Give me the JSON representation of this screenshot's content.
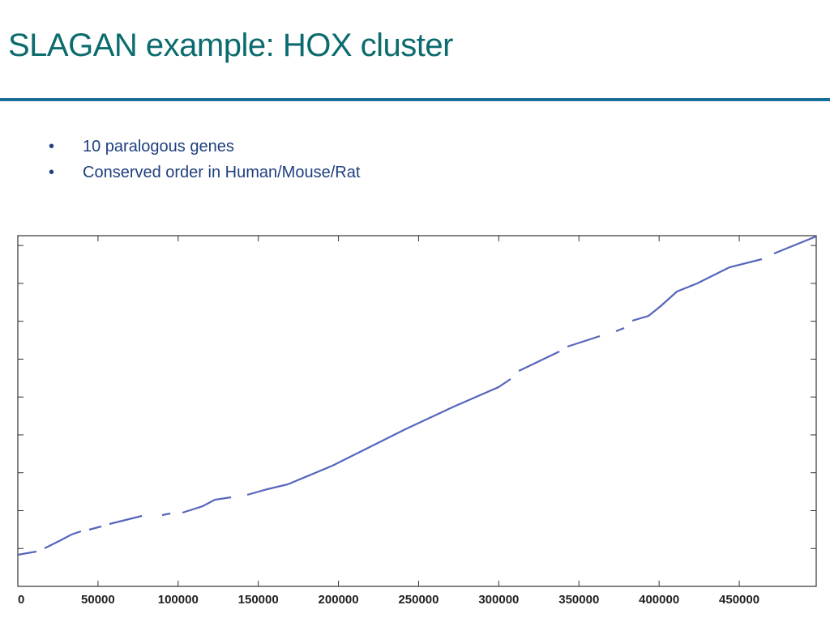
{
  "header": {
    "title": "SLAGAN example: HOX cluster"
  },
  "bullets": [
    "10 paralogous genes",
    "Conserved order in Human/Mouse/Rat"
  ],
  "chart_data": {
    "type": "line",
    "xlim": [
      0,
      498000
    ],
    "xticks": [
      0,
      50000,
      100000,
      150000,
      200000,
      250000,
      300000,
      350000,
      400000,
      450000
    ],
    "ylim": [
      0,
      463000
    ],
    "yticks": [
      50000,
      100000,
      150000,
      200000,
      250000,
      300000,
      350000,
      400000,
      450000
    ],
    "series": [
      {
        "color": "#5566bb",
        "x": [
          0,
          11600,
          null,
          16700,
          26800,
          33400,
          39400,
          null,
          44500,
          52100,
          null,
          57100,
          77400,
          null,
          90000,
          95100,
          null,
          102700,
          115300,
          122900,
          133000,
          null,
          143100,
          155700,
          168400,
          196200,
          241700,
          272000,
          299800,
          307400,
          null,
          312500,
          337800,
          null,
          342800,
          363000,
          null,
          373100,
          378200,
          null,
          383300,
          393400,
          401000,
          411100,
          423700,
          443900,
          464100,
          null,
          471700,
          498000
        ],
        "values": [
          41700,
          46000,
          null,
          50300,
          61000,
          68400,
          72700,
          null,
          74900,
          79100,
          null,
          82300,
          93000,
          null,
          94100,
          96200,
          null,
          97300,
          105900,
          114400,
          117600,
          null,
          120800,
          128300,
          134700,
          159300,
          207400,
          237400,
          263000,
          273700,
          null,
          284400,
          310100,
          null,
          316500,
          330400,
          null,
          336800,
          341100,
          null,
          350700,
          357100,
          370000,
          389200,
          399900,
          421300,
          432000,
          null,
          439500,
          462000
        ]
      }
    ]
  }
}
